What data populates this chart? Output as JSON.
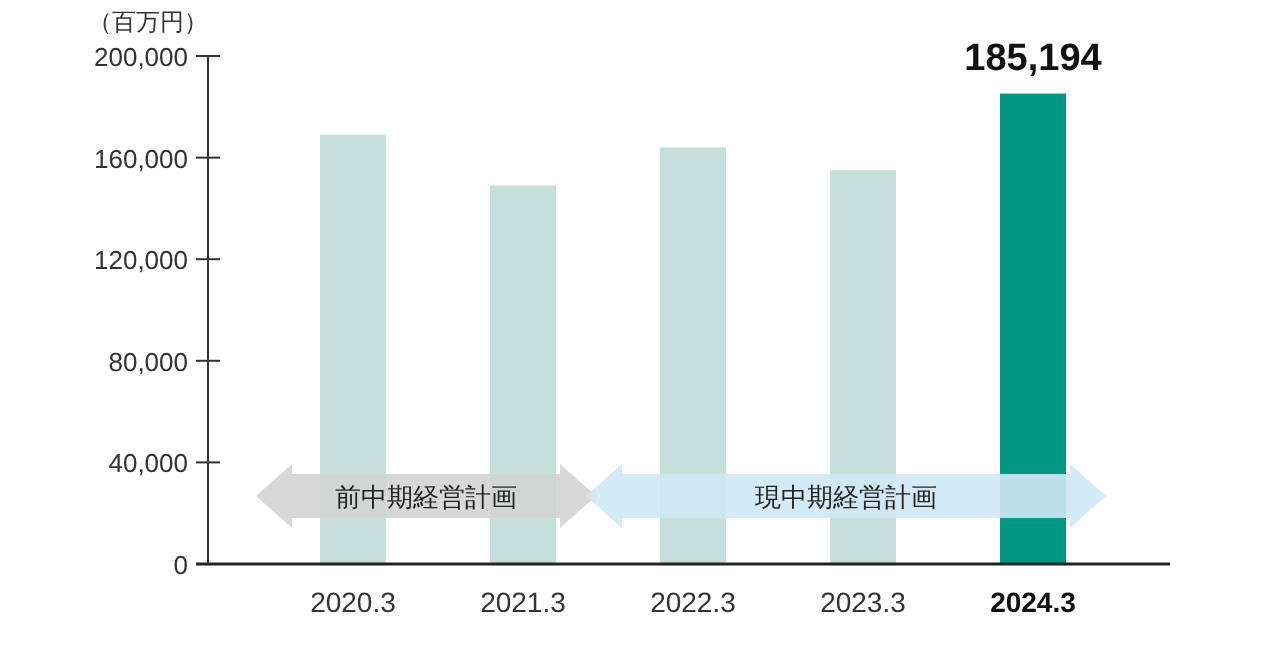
{
  "chart_data": {
    "type": "bar",
    "ylabel": "（百万円）",
    "categories": [
      "2020.3",
      "2021.3",
      "2022.3",
      "2023.3",
      "2024.3"
    ],
    "values": [
      169000,
      149000,
      164000,
      155000,
      185194
    ],
    "colors": [
      "#c5e0da",
      "#c5e0da",
      "#c5e0da",
      "#c5e0da",
      "#009782"
    ],
    "value_labels": [
      null,
      null,
      null,
      null,
      "185,194"
    ],
    "ylim": [
      0,
      200000
    ],
    "yticks": [
      {
        "value": 0,
        "label": "0"
      },
      {
        "value": 40000,
        "label": "40,000"
      },
      {
        "value": 80000,
        "label": "80,000"
      },
      {
        "value": 120000,
        "label": "120,000"
      },
      {
        "value": 160000,
        "label": "160,000"
      },
      {
        "value": 200000,
        "label": "200,000"
      }
    ],
    "annotations": [
      "前中期経営計画",
      "現中期経営計画"
    ]
  }
}
